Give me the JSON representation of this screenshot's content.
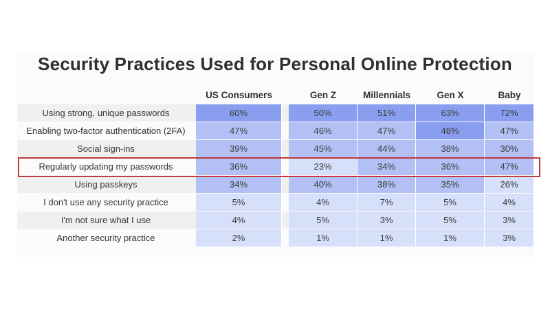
{
  "chart_data": {
    "type": "table",
    "title": "Security Practices Used for Personal Online Protection",
    "columns": [
      "US Consumers",
      "Gen Z",
      "Millennials",
      "Gen X",
      "Baby Boomers"
    ],
    "rows": [
      {
        "label": "Using strong, unique passwords",
        "values": [
          "60%",
          "50%",
          "51%",
          "63%",
          "72%"
        ]
      },
      {
        "label": "Enabling two-factor authentication (2FA)",
        "values": [
          "47%",
          "46%",
          "47%",
          "48%",
          "47%"
        ]
      },
      {
        "label": "Social sign-ins",
        "values": [
          "39%",
          "45%",
          "44%",
          "38%",
          "30%"
        ]
      },
      {
        "label": "Regularly updating my passwords",
        "values": [
          "36%",
          "23%",
          "34%",
          "36%",
          "47%"
        ]
      },
      {
        "label": "Using passkeys",
        "values": [
          "34%",
          "40%",
          "38%",
          "35%",
          "26%"
        ]
      },
      {
        "label": "I don't use any security practice",
        "values": [
          "5%",
          "4%",
          "7%",
          "5%",
          "4%"
        ]
      },
      {
        "label": "I'm not sure what I use",
        "values": [
          "4%",
          "5%",
          "3%",
          "5%",
          "3%"
        ]
      },
      {
        "label": "Another security practice",
        "values": [
          "2%",
          "1%",
          "1%",
          "1%",
          "3%"
        ]
      }
    ],
    "highlighted_row": "Regularly updating my passwords"
  },
  "colors": {
    "high": "#8a9ef0",
    "mid": "#b2c0f5",
    "low": "#d7e0fb",
    "highlight_border": "#c0393b"
  }
}
